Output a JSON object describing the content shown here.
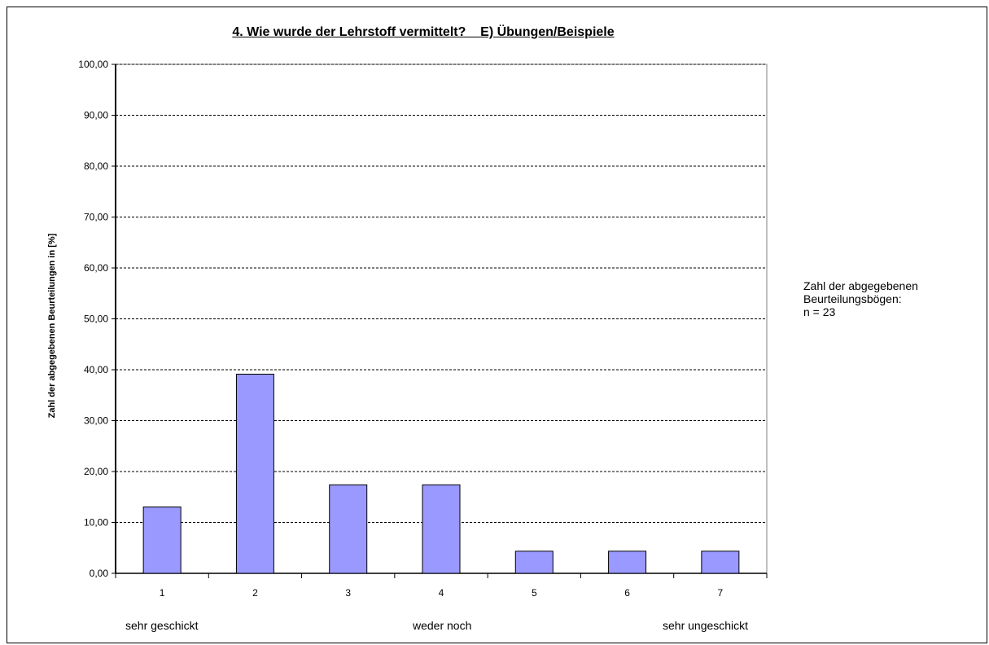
{
  "chart_data": {
    "type": "bar",
    "title": "4. Wie wurde der Lehrstoff vermittelt?    E) Übungen/Beispiele",
    "ylabel": "Zahl der abgegebenen Beurteilungen in [%]",
    "xlabel": "",
    "categories": [
      "1",
      "2",
      "3",
      "4",
      "5",
      "6",
      "7"
    ],
    "values": [
      13.04,
      39.13,
      17.39,
      17.39,
      4.35,
      4.35,
      4.35
    ],
    "ylim": [
      0,
      100
    ],
    "yticks": [
      "0,00",
      "10,00",
      "20,00",
      "30,00",
      "40,00",
      "50,00",
      "60,00",
      "70,00",
      "80,00",
      "90,00",
      "100,00"
    ],
    "grid": true,
    "bar_color": "#9999ff",
    "scale_labels": {
      "left": "sehr geschickt",
      "middle": "weder noch",
      "right": "sehr ungeschickt"
    }
  },
  "note": {
    "line1": "Zahl der abgegebenen",
    "line2": "Beurteilungsbögen:",
    "line3": "n = 23"
  }
}
